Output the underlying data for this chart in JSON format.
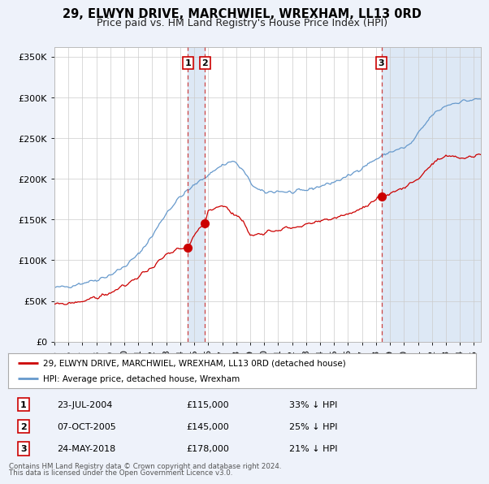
{
  "title": "29, ELWYN DRIVE, MARCHWIEL, WREXHAM, LL13 0RD",
  "subtitle": "Price paid vs. HM Land Registry's House Price Index (HPI)",
  "yticks": [
    0,
    50000,
    100000,
    150000,
    200000,
    250000,
    300000,
    350000
  ],
  "ytick_labels": [
    "£0",
    "£50K",
    "£100K",
    "£150K",
    "£200K",
    "£250K",
    "£300K",
    "£350K"
  ],
  "xlim_start": 1995.0,
  "xlim_end": 2025.5,
  "ylim": [
    0,
    362000
  ],
  "transactions": [
    {
      "num": 1,
      "date_str": "23-JUL-2004",
      "date_x": 2004.55,
      "price": 115000,
      "pct": "33%",
      "vline_x": 2004.55
    },
    {
      "num": 2,
      "date_str": "07-OCT-2005",
      "date_x": 2005.77,
      "price": 145000,
      "pct": "25%",
      "vline_x": 2005.77
    },
    {
      "num": 3,
      "date_str": "24-MAY-2018",
      "date_x": 2018.39,
      "price": 178000,
      "pct": "21%",
      "vline_x": 2018.39
    }
  ],
  "legend_line1": "29, ELWYN DRIVE, MARCHWIEL, WREXHAM, LL13 0RD (detached house)",
  "legend_line2": "HPI: Average price, detached house, Wrexham",
  "footnote1": "Contains HM Land Registry data © Crown copyright and database right 2024.",
  "footnote2": "This data is licensed under the Open Government Licence v3.0.",
  "price_line_color": "#cc0000",
  "hpi_line_color": "#6699cc",
  "background_color": "#eef2fa",
  "plot_bg_color": "#ffffff",
  "vline_color": "#cc4444",
  "shade_color": "#dde8f5",
  "title_fontsize": 10.5,
  "subtitle_fontsize": 9,
  "tick_fontsize": 8
}
